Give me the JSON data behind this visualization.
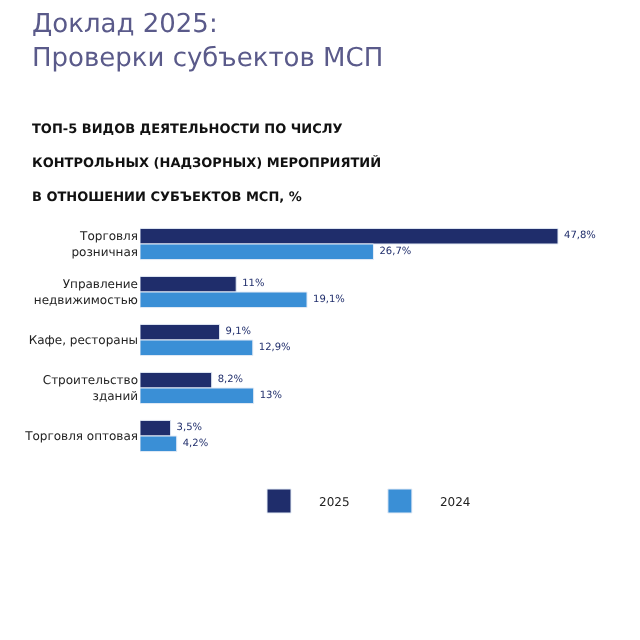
{
  "chart_data": {
    "type": "bar",
    "orientation": "horizontal",
    "title": "Доклад 2025:\nПроверки субъектов МСП",
    "subtitle": "ТОП-5 ВИДОВ ДЕЯТЕЛЬНОСТИ ПО ЧИСЛУ\nКОНТРОЛЬНЫХ (НАДЗОРНЫХ) МЕРОПРИЯТИЙ\nВ ОТНОШЕНИИ СУБЪЕКТОВ МСП, %",
    "categories": [
      "Торговля\nрозничная",
      "Управление\nнедвижимостью",
      "Кафе, рестораны",
      "Строительство\nзданий",
      "Торговля оптовая"
    ],
    "series": [
      {
        "name": "2025",
        "color": "#1f2d6b",
        "values": [
          47.8,
          11,
          9.1,
          8.2,
          3.5
        ],
        "value_labels": [
          "47,8%",
          "11%",
          "9,1%",
          "8,2%",
          "3,5%"
        ]
      },
      {
        "name": "2024",
        "color": "#3a8fd6",
        "values": [
          26.7,
          19.1,
          12.9,
          13,
          4.2
        ],
        "value_labels": [
          "26,7%",
          "19,1%",
          "12,9%",
          "13%",
          "4,2%"
        ]
      }
    ],
    "legend": "bottom"
  }
}
